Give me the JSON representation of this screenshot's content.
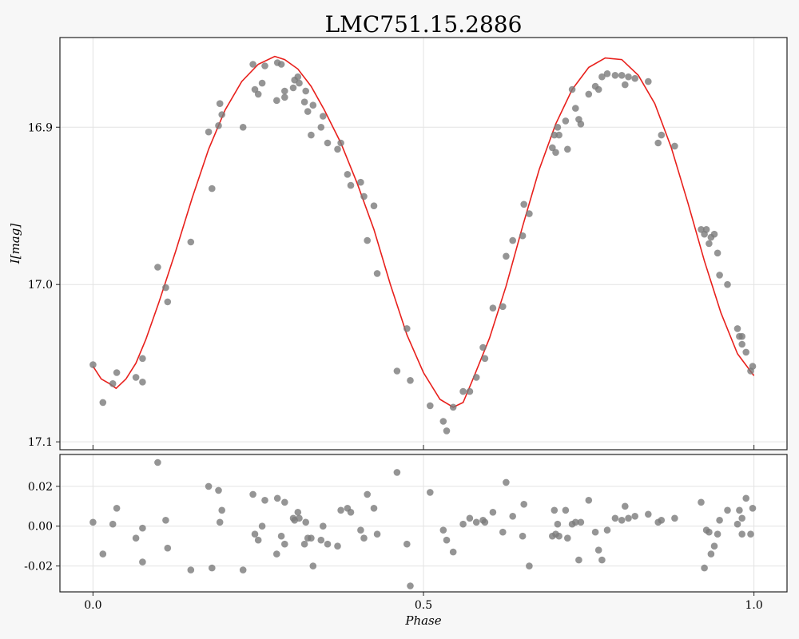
{
  "chart_data": [
    {
      "type": "scatter",
      "panel": "main",
      "title": "LMC751.15.2886",
      "ylabel": "I[mag]",
      "xlim": [
        -0.05,
        1.05
      ],
      "ylim": [
        17.105,
        16.843
      ],
      "y_inverted": true,
      "xticks": [
        "0.0",
        "0.5",
        "1.0"
      ],
      "yticks": [
        "16.9",
        "17.0",
        "17.1"
      ],
      "grid": true,
      "series": [
        {
          "color": "#7a7a7a",
          "points": [
            [
              0.0,
              17.051
            ],
            [
              0.015,
              17.075
            ],
            [
              0.03,
              17.063
            ],
            [
              0.036,
              17.056
            ],
            [
              0.065,
              17.059
            ],
            [
              0.075,
              17.062
            ],
            [
              0.075,
              17.047
            ],
            [
              0.098,
              16.989
            ],
            [
              0.11,
              17.002
            ],
            [
              0.113,
              17.011
            ],
            [
              0.148,
              16.973
            ],
            [
              0.175,
              16.903
            ],
            [
              0.18,
              16.939
            ],
            [
              0.19,
              16.899
            ],
            [
              0.192,
              16.885
            ],
            [
              0.195,
              16.892
            ],
            [
              0.227,
              16.9
            ],
            [
              0.242,
              16.86
            ],
            [
              0.245,
              16.876
            ],
            [
              0.25,
              16.879
            ],
            [
              0.256,
              16.872
            ],
            [
              0.26,
              16.861
            ],
            [
              0.278,
              16.883
            ],
            [
              0.279,
              16.859
            ],
            [
              0.285,
              16.86
            ],
            [
              0.29,
              16.877
            ],
            [
              0.29,
              16.881
            ],
            [
              0.303,
              16.875
            ],
            [
              0.305,
              16.87
            ],
            [
              0.31,
              16.868
            ],
            [
              0.312,
              16.872
            ],
            [
              0.32,
              16.884
            ],
            [
              0.322,
              16.877
            ],
            [
              0.325,
              16.89
            ],
            [
              0.33,
              16.905
            ],
            [
              0.333,
              16.886
            ],
            [
              0.345,
              16.9
            ],
            [
              0.348,
              16.893
            ],
            [
              0.355,
              16.91
            ],
            [
              0.375,
              16.91
            ],
            [
              0.37,
              16.914
            ],
            [
              0.385,
              16.93
            ],
            [
              0.39,
              16.937
            ],
            [
              0.405,
              16.935
            ],
            [
              0.41,
              16.944
            ],
            [
              0.415,
              16.972
            ],
            [
              0.425,
              16.95
            ],
            [
              0.43,
              16.993
            ],
            [
              0.46,
              17.055
            ],
            [
              0.475,
              17.028
            ],
            [
              0.48,
              17.061
            ],
            [
              0.51,
              17.077
            ],
            [
              0.53,
              17.087
            ],
            [
              0.535,
              17.093
            ],
            [
              0.545,
              17.078
            ],
            [
              0.56,
              17.068
            ],
            [
              0.57,
              17.068
            ],
            [
              0.58,
              17.059
            ],
            [
              0.59,
              17.04
            ],
            [
              0.593,
              17.047
            ],
            [
              0.605,
              17.015
            ],
            [
              0.62,
              17.014
            ],
            [
              0.625,
              16.982
            ],
            [
              0.635,
              16.972
            ],
            [
              0.65,
              16.969
            ],
            [
              0.652,
              16.949
            ],
            [
              0.66,
              16.955
            ],
            [
              0.695,
              16.913
            ],
            [
              0.698,
              16.905
            ],
            [
              0.7,
              16.916
            ],
            [
              0.703,
              16.9
            ],
            [
              0.705,
              16.905
            ],
            [
              0.715,
              16.896
            ],
            [
              0.718,
              16.914
            ],
            [
              0.725,
              16.876
            ],
            [
              0.73,
              16.888
            ],
            [
              0.735,
              16.895
            ],
            [
              0.738,
              16.898
            ],
            [
              0.75,
              16.879
            ],
            [
              0.76,
              16.874
            ],
            [
              0.765,
              16.876
            ],
            [
              0.77,
              16.868
            ],
            [
              0.778,
              16.866
            ],
            [
              0.79,
              16.867
            ],
            [
              0.8,
              16.867
            ],
            [
              0.805,
              16.873
            ],
            [
              0.81,
              16.868
            ],
            [
              0.82,
              16.869
            ],
            [
              0.84,
              16.871
            ],
            [
              0.855,
              16.91
            ],
            [
              0.86,
              16.905
            ],
            [
              0.88,
              16.912
            ],
            [
              0.92,
              16.965
            ],
            [
              0.925,
              16.968
            ],
            [
              0.928,
              16.965
            ],
            [
              0.932,
              16.974
            ],
            [
              0.935,
              16.97
            ],
            [
              0.94,
              16.968
            ],
            [
              0.945,
              16.98
            ],
            [
              0.948,
              16.994
            ],
            [
              0.96,
              17.0
            ],
            [
              0.975,
              17.028
            ],
            [
              0.978,
              17.033
            ],
            [
              0.982,
              17.038
            ],
            [
              0.988,
              17.043
            ],
            [
              0.995,
              17.055
            ],
            [
              0.998,
              17.052
            ],
            [
              0.982,
              17.033
            ]
          ]
        },
        {
          "color": "#e8201c",
          "model": true,
          "points": [
            [
              0.0,
              17.052
            ],
            [
              0.0125,
              17.06
            ],
            [
              0.025,
              17.063
            ],
            [
              0.035,
              17.066
            ],
            [
              0.05,
              17.06
            ],
            [
              0.065,
              17.05
            ],
            [
              0.08,
              17.035
            ],
            [
              0.1,
              17.011
            ],
            [
              0.125,
              16.979
            ],
            [
              0.15,
              16.945
            ],
            [
              0.175,
              16.914
            ],
            [
              0.2,
              16.889
            ],
            [
              0.225,
              16.871
            ],
            [
              0.25,
              16.86
            ],
            [
              0.275,
              16.855
            ],
            [
              0.29,
              16.857
            ],
            [
              0.31,
              16.863
            ],
            [
              0.33,
              16.874
            ],
            [
              0.35,
              16.889
            ],
            [
              0.375,
              16.91
            ],
            [
              0.4,
              16.936
            ],
            [
              0.425,
              16.965
            ],
            [
              0.45,
              17.0
            ],
            [
              0.475,
              17.032
            ],
            [
              0.5,
              17.056
            ],
            [
              0.525,
              17.073
            ],
            [
              0.545,
              17.078
            ],
            [
              0.56,
              17.075
            ],
            [
              0.575,
              17.06
            ],
            [
              0.6,
              17.034
            ],
            [
              0.625,
              17.001
            ],
            [
              0.65,
              16.963
            ],
            [
              0.675,
              16.927
            ],
            [
              0.7,
              16.898
            ],
            [
              0.725,
              16.876
            ],
            [
              0.75,
              16.862
            ],
            [
              0.775,
              16.856
            ],
            [
              0.8,
              16.857
            ],
            [
              0.825,
              16.867
            ],
            [
              0.85,
              16.885
            ],
            [
              0.875,
              16.913
            ],
            [
              0.9,
              16.948
            ],
            [
              0.925,
              16.985
            ],
            [
              0.95,
              17.018
            ],
            [
              0.975,
              17.044
            ],
            [
              1.0,
              17.058
            ]
          ]
        }
      ]
    },
    {
      "type": "scatter",
      "panel": "residuals",
      "xlabel": "Phase",
      "xlim": [
        -0.05,
        1.05
      ],
      "ylim": [
        -0.033,
        0.036
      ],
      "xticks": [
        "0.0",
        "0.5",
        "1.0"
      ],
      "yticks": [
        "0.02",
        "0.00",
        "-0.02"
      ],
      "grid": true,
      "series": [
        {
          "color": "#7a7a7a",
          "points": [
            [
              0.0,
              0.002
            ],
            [
              0.015,
              -0.014
            ],
            [
              0.03,
              0.001
            ],
            [
              0.036,
              0.009
            ],
            [
              0.065,
              -0.006
            ],
            [
              0.075,
              -0.001
            ],
            [
              0.075,
              -0.018
            ],
            [
              0.098,
              0.032
            ],
            [
              0.11,
              0.003
            ],
            [
              0.113,
              -0.011
            ],
            [
              0.148,
              -0.022
            ],
            [
              0.175,
              0.02
            ],
            [
              0.18,
              -0.021
            ],
            [
              0.19,
              0.018
            ],
            [
              0.192,
              0.002
            ],
            [
              0.195,
              0.008
            ],
            [
              0.227,
              -0.022
            ],
            [
              0.242,
              0.016
            ],
            [
              0.245,
              -0.004
            ],
            [
              0.25,
              -0.007
            ],
            [
              0.256,
              0.0
            ],
            [
              0.26,
              0.013
            ],
            [
              0.278,
              -0.014
            ],
            [
              0.279,
              0.014
            ],
            [
              0.285,
              -0.005
            ],
            [
              0.29,
              0.012
            ],
            [
              0.29,
              -0.009
            ],
            [
              0.303,
              0.004
            ],
            [
              0.305,
              0.003
            ],
            [
              0.31,
              0.007
            ],
            [
              0.312,
              0.004
            ],
            [
              0.32,
              -0.009
            ],
            [
              0.322,
              0.002
            ],
            [
              0.325,
              -0.006
            ],
            [
              0.33,
              -0.006
            ],
            [
              0.333,
              -0.02
            ],
            [
              0.345,
              -0.007
            ],
            [
              0.348,
              0.0
            ],
            [
              0.355,
              -0.009
            ],
            [
              0.375,
              0.008
            ],
            [
              0.37,
              -0.01
            ],
            [
              0.385,
              0.009
            ],
            [
              0.39,
              0.007
            ],
            [
              0.405,
              -0.002
            ],
            [
              0.41,
              -0.006
            ],
            [
              0.415,
              0.016
            ],
            [
              0.425,
              0.009
            ],
            [
              0.43,
              -0.004
            ],
            [
              0.46,
              0.027
            ],
            [
              0.475,
              -0.009
            ],
            [
              0.48,
              -0.03
            ],
            [
              0.51,
              0.017
            ],
            [
              0.53,
              -0.002
            ],
            [
              0.535,
              -0.007
            ],
            [
              0.545,
              -0.013
            ],
            [
              0.56,
              0.001
            ],
            [
              0.57,
              0.004
            ],
            [
              0.58,
              0.002
            ],
            [
              0.59,
              0.003
            ],
            [
              0.593,
              0.002
            ],
            [
              0.605,
              0.007
            ],
            [
              0.62,
              -0.003
            ],
            [
              0.625,
              0.022
            ],
            [
              0.635,
              0.005
            ],
            [
              0.65,
              -0.005
            ],
            [
              0.652,
              0.011
            ],
            [
              0.66,
              -0.02
            ],
            [
              0.695,
              -0.005
            ],
            [
              0.698,
              0.008
            ],
            [
              0.7,
              -0.004
            ],
            [
              0.703,
              0.001
            ],
            [
              0.705,
              -0.005
            ],
            [
              0.715,
              0.008
            ],
            [
              0.718,
              -0.006
            ],
            [
              0.725,
              0.001
            ],
            [
              0.73,
              0.002
            ],
            [
              0.735,
              -0.017
            ],
            [
              0.738,
              0.002
            ],
            [
              0.75,
              0.013
            ],
            [
              0.76,
              -0.003
            ],
            [
              0.765,
              -0.012
            ],
            [
              0.77,
              -0.017
            ],
            [
              0.778,
              -0.002
            ],
            [
              0.79,
              0.004
            ],
            [
              0.8,
              0.003
            ],
            [
              0.805,
              0.01
            ],
            [
              0.81,
              0.004
            ],
            [
              0.82,
              0.005
            ],
            [
              0.84,
              0.006
            ],
            [
              0.855,
              0.002
            ],
            [
              0.86,
              0.003
            ],
            [
              0.88,
              0.004
            ],
            [
              0.92,
              0.012
            ],
            [
              0.925,
              -0.021
            ],
            [
              0.928,
              -0.002
            ],
            [
              0.932,
              -0.003
            ],
            [
              0.935,
              -0.014
            ],
            [
              0.94,
              -0.01
            ],
            [
              0.945,
              -0.004
            ],
            [
              0.948,
              0.003
            ],
            [
              0.96,
              0.008
            ],
            [
              0.975,
              0.001
            ],
            [
              0.978,
              0.008
            ],
            [
              0.982,
              -0.004
            ],
            [
              0.988,
              0.014
            ],
            [
              0.995,
              -0.004
            ],
            [
              0.998,
              0.009
            ],
            [
              0.982,
              0.004
            ]
          ]
        }
      ]
    }
  ]
}
